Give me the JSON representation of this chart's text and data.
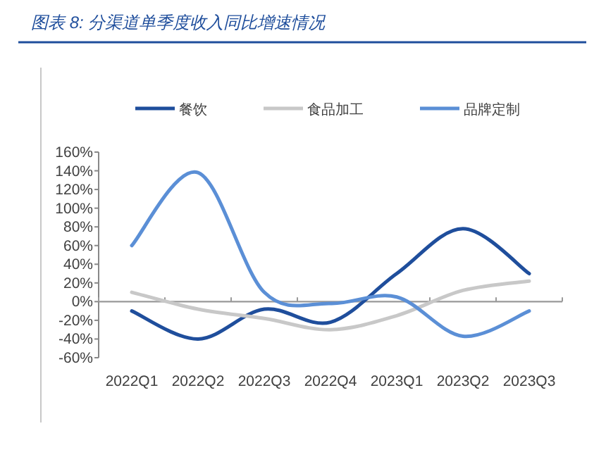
{
  "chart_data": {
    "type": "line",
    "title": "图表 8:  分渠道单季度收入同比增速情况",
    "categories": [
      "2022Q1",
      "2022Q2",
      "2022Q3",
      "2022Q4",
      "2023Q1",
      "2023Q2",
      "2023Q3"
    ],
    "series": [
      {
        "name": "餐饮",
        "color": "#1f4e9c",
        "values": [
          -10,
          -40,
          -8,
          -22,
          30,
          78,
          30
        ]
      },
      {
        "name": "食品加工",
        "color": "#c8c8c8",
        "values": [
          10,
          -8,
          -18,
          -30,
          -15,
          12,
          22
        ]
      },
      {
        "name": "品牌定制",
        "color": "#5b8fd6",
        "values": [
          60,
          138,
          10,
          -2,
          5,
          -37,
          -10
        ]
      }
    ],
    "ylim": [
      -60,
      160
    ],
    "yticks": [
      {
        "value": -60,
        "label": "-60%"
      },
      {
        "value": -40,
        "label": "-40%"
      },
      {
        "value": -20,
        "label": "-20%"
      },
      {
        "value": 0,
        "label": "0%"
      },
      {
        "value": 20,
        "label": "20%"
      },
      {
        "value": 40,
        "label": "40%"
      },
      {
        "value": 60,
        "label": "60%"
      },
      {
        "value": 80,
        "label": "80%"
      },
      {
        "value": 100,
        "label": "100%"
      },
      {
        "value": 120,
        "label": "120%"
      },
      {
        "value": 140,
        "label": "140%"
      },
      {
        "value": 160,
        "label": "160%"
      }
    ],
    "legend": "top",
    "marker": "none"
  }
}
